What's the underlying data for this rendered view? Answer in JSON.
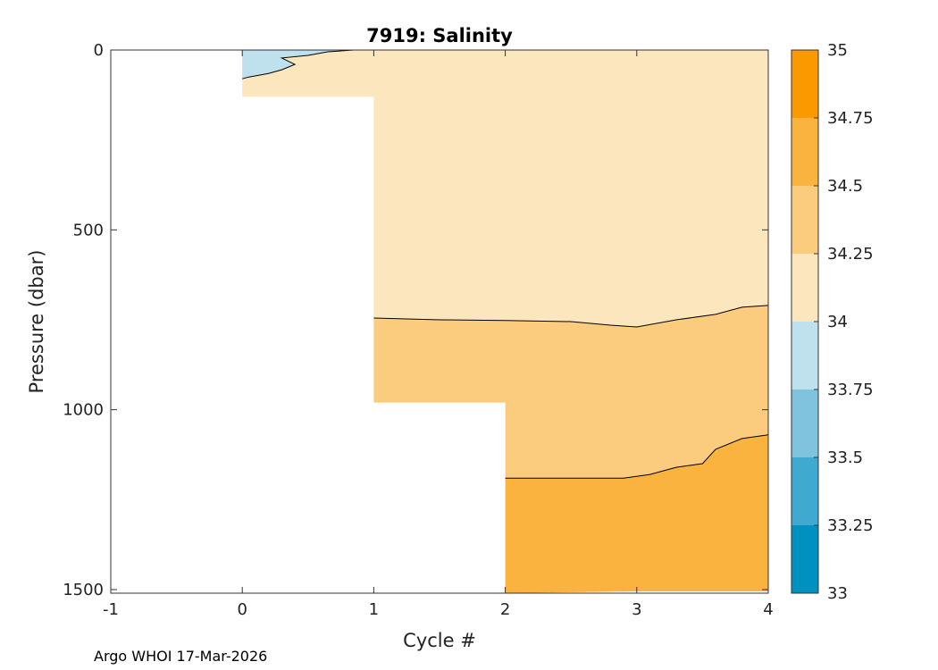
{
  "footer": "Argo WHOI 17-Mar-2026",
  "chart_data": {
    "type": "heatmap",
    "title": "7919:  Salinity",
    "xlabel": "Cycle #",
    "ylabel": "Pressure (dbar)",
    "xlim": [
      -1,
      4
    ],
    "ylim": [
      0,
      1510
    ],
    "y_reversed": true,
    "xticks": [
      -1,
      0,
      1,
      2,
      3,
      4
    ],
    "yticks": [
      0,
      500,
      1000,
      1500
    ],
    "colorbar": {
      "levels": [
        33,
        33.25,
        33.5,
        33.75,
        34,
        34.25,
        34.5,
        34.75,
        35
      ],
      "tick_labels": [
        "33",
        "33.25",
        "33.5",
        "33.75",
        "34",
        "34.25",
        "34.5",
        "34.75",
        "35"
      ],
      "colors": [
        "#0191c0",
        "#40a9d0",
        "#7fc3df",
        "#bfe0ed",
        "#fce6bd",
        "#fccc7e",
        "#fbb33f",
        "#fa9a00"
      ]
    },
    "regions": [
      {
        "range": "34-34.25",
        "color": "#fce6bd",
        "polygon": [
          [
            0,
            0
          ],
          [
            4,
            0
          ],
          [
            4,
            710
          ],
          [
            3.8,
            715
          ],
          [
            3.6,
            735
          ],
          [
            3.3,
            750
          ],
          [
            3.0,
            770
          ],
          [
            2.8,
            765
          ],
          [
            2.5,
            755
          ],
          [
            2.0,
            752
          ],
          [
            1.5,
            750
          ],
          [
            1.0,
            745
          ],
          [
            1.0,
            130
          ],
          [
            0,
            130
          ]
        ]
      },
      {
        "range": "33.75-34",
        "color": "#bfe0ed",
        "polygon": [
          [
            0,
            0
          ],
          [
            0.85,
            0
          ],
          [
            0.65,
            5
          ],
          [
            0.5,
            15
          ],
          [
            0.3,
            22
          ],
          [
            0.4,
            40
          ],
          [
            0.3,
            55
          ],
          [
            0.2,
            65
          ],
          [
            0.05,
            75
          ],
          [
            0,
            80
          ]
        ]
      },
      {
        "range": "34.25-34.5",
        "color": "#fccc7e",
        "polygon": [
          [
            1,
            745
          ],
          [
            1.5,
            750
          ],
          [
            2.0,
            752
          ],
          [
            2.5,
            755
          ],
          [
            2.8,
            765
          ],
          [
            3.0,
            770
          ],
          [
            3.3,
            750
          ],
          [
            3.6,
            735
          ],
          [
            3.8,
            715
          ],
          [
            4,
            710
          ],
          [
            4,
            1070
          ],
          [
            3.8,
            1080
          ],
          [
            3.6,
            1110
          ],
          [
            3.5,
            1150
          ],
          [
            3.3,
            1160
          ],
          [
            3.1,
            1180
          ],
          [
            2.9,
            1190
          ],
          [
            2.0,
            1190
          ],
          [
            2,
            980
          ],
          [
            1,
            980
          ]
        ]
      },
      {
        "range": "34.5-34.75",
        "color": "#fbb33f",
        "polygon": [
          [
            2,
            1190
          ],
          [
            2.9,
            1190
          ],
          [
            3.1,
            1180
          ],
          [
            3.3,
            1160
          ],
          [
            3.5,
            1150
          ],
          [
            3.6,
            1110
          ],
          [
            3.8,
            1080
          ],
          [
            4,
            1070
          ],
          [
            4,
            1505
          ],
          [
            3.5,
            1505
          ],
          [
            3.0,
            1505
          ],
          [
            2,
            1510
          ]
        ]
      }
    ],
    "contours": [
      {
        "level": 34,
        "points": [
          [
            0.0,
            80
          ],
          [
            0.05,
            75
          ],
          [
            0.2,
            65
          ],
          [
            0.3,
            55
          ],
          [
            0.4,
            40
          ],
          [
            0.3,
            22
          ],
          [
            0.5,
            15
          ],
          [
            0.65,
            5
          ],
          [
            0.85,
            0
          ]
        ]
      },
      {
        "level": 34.25,
        "points": [
          [
            1.0,
            745
          ],
          [
            1.5,
            750
          ],
          [
            2.0,
            752
          ],
          [
            2.5,
            755
          ],
          [
            2.8,
            765
          ],
          [
            3.0,
            770
          ],
          [
            3.3,
            750
          ],
          [
            3.6,
            735
          ],
          [
            3.8,
            715
          ],
          [
            4.0,
            710
          ]
        ]
      },
      {
        "level": 34.5,
        "points": [
          [
            2.0,
            1190
          ],
          [
            2.9,
            1190
          ],
          [
            3.1,
            1180
          ],
          [
            3.3,
            1160
          ],
          [
            3.5,
            1150
          ],
          [
            3.6,
            1110
          ],
          [
            3.8,
            1080
          ],
          [
            4.0,
            1070
          ]
        ]
      }
    ]
  }
}
